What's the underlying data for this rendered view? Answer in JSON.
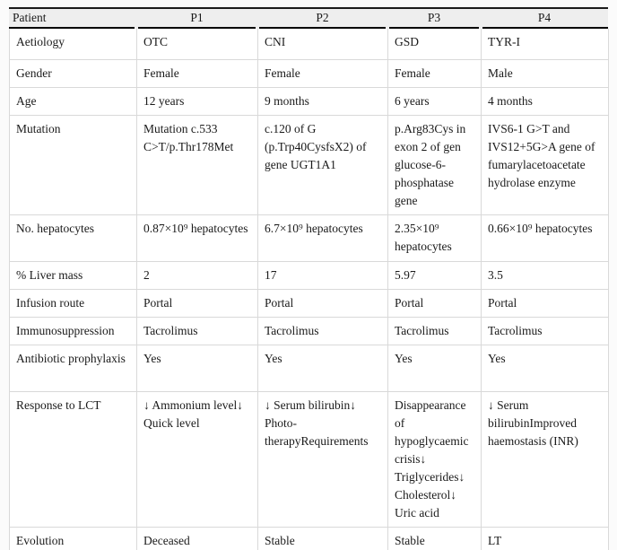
{
  "colors": {
    "grid_line": "#d9d9d9",
    "header_rule": "#000000",
    "header_background": "#eeeeee",
    "text": "#1a1a1a"
  },
  "table": {
    "header": {
      "label": "Patient",
      "columns": [
        "P1",
        "P2",
        "P3",
        "P4"
      ]
    },
    "rows": [
      {
        "label": "Aetiology",
        "values": [
          "OTC",
          "CNI",
          "GSD",
          "TYR-I"
        ]
      },
      {
        "label": "Gender",
        "values": [
          "Female",
          "Female",
          "Female",
          "Male"
        ]
      },
      {
        "label": "Age",
        "values": [
          "12 years",
          "9 months",
          "6 years",
          "4 months"
        ]
      },
      {
        "label": "Mutation",
        "values": [
          "Mutation c.533 C>T/p.Thr178Met",
          "c.120 of G (p.Trp40CysfsX2) of gene UGT1A1",
          "p.Arg83Cys in exon 2 of gen glucose-6-phosphatase gene",
          "IVS6-1 G>T and IVS12+5G>A gene of fumarylacetoacetate hydrolase enzyme"
        ]
      },
      {
        "label": "No. hepatocytes",
        "values": [
          "0.87×10⁹ hepatocytes",
          "6.7×10⁹ hepatocytes",
          "2.35×10⁹ hepatocytes",
          "0.66×10⁹ hepatocytes"
        ]
      },
      {
        "label": "% Liver mass",
        "values": [
          "2",
          "17",
          "5.97",
          "3.5"
        ]
      },
      {
        "label": "Infusion route",
        "values": [
          "Portal",
          "Portal",
          "Portal",
          "Portal"
        ]
      },
      {
        "label": "Immunosuppression",
        "values": [
          "Tacrolimus",
          "Tacrolimus",
          "Tacrolimus",
          "Tacrolimus"
        ]
      },
      {
        "label": "Antibiotic prophylaxis",
        "values": [
          "Yes",
          "Yes",
          "Yes",
          "Yes"
        ]
      },
      {
        "label": "Response to LCT",
        "values": [
          "↓ Ammonium level↓ Quick level",
          "↓ Serum bilirubin↓ Photo-therapyRequirements",
          "Disappearance of hypoglycaemic crisis↓ Triglycerides↓ Cholesterol↓ Uric acid",
          "↓ Serum bilirubinImproved haemostasis (INR)"
        ]
      },
      {
        "label": "Evolution",
        "values": [
          "Deceased",
          "Stable",
          "Stable",
          "LT"
        ]
      }
    ]
  }
}
